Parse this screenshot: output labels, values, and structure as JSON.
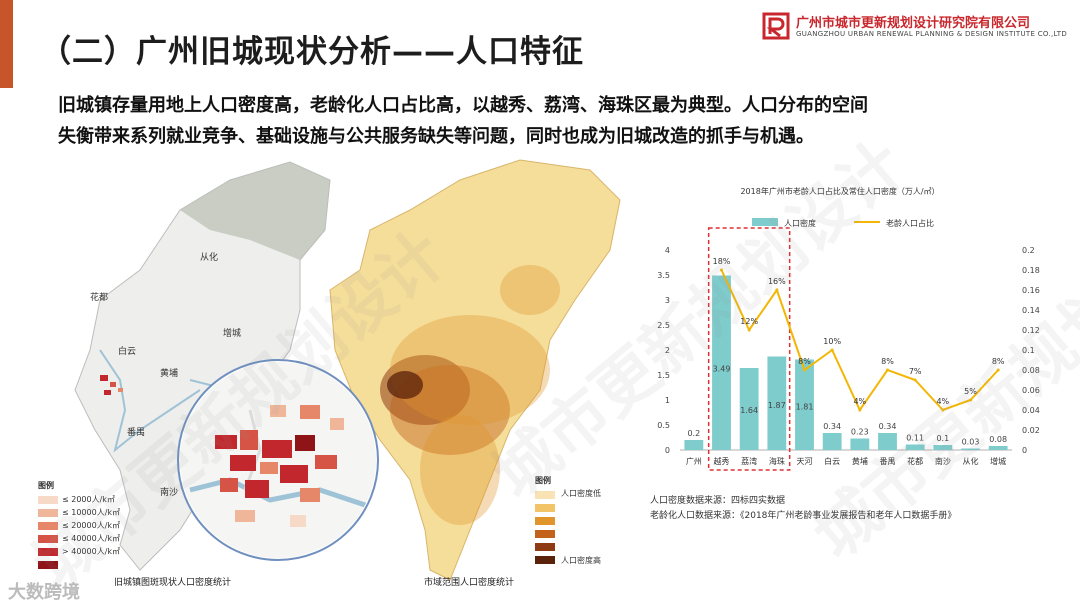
{
  "slide": {
    "title": "（二）广州旧城现状分析——人口特征",
    "lead_line1": "旧城镇存量用地上人口密度高，老龄化人口占比高，以越秀、荔湾、海珠区最为典型。人口分布的空间",
    "lead_line2": "失衡带来系列就业竞争、基础设施与公共服务缺失等问题，同时也成为旧城改造的抓手与机遇。"
  },
  "logo": {
    "name": "广州市城市更新规划设计研究院有限公司",
    "subtitle": "GUANGZHOU URBAN RENEWAL PLANNING & DESIGN INSTITUTE CO.,LTD",
    "color": "#c8282d"
  },
  "map_left": {
    "districts": [
      "从化",
      "花都",
      "增城",
      "白云",
      "黄埔",
      "番禺",
      "南沙"
    ],
    "legend_title": "图例",
    "legend": [
      {
        "label": "≤ 2000人/k㎡",
        "color": "#f6d9c6"
      },
      {
        "label": "≤ 10000人/k㎡",
        "color": "#efb69a"
      },
      {
        "label": "≤ 20000人/k㎡",
        "color": "#e6876a"
      },
      {
        "label": "≤ 40000人/k㎡",
        "color": "#d65446"
      },
      {
        "label": "> 40000人/k㎡",
        "color": "#c1272d"
      },
      {
        "label": "",
        "color": "#8e1418"
      }
    ],
    "caption": "旧城镇图斑现状人口密度统计"
  },
  "map_right": {
    "legend_title": "图例",
    "legend_low": "人口密度低",
    "legend_high": "人口密度高",
    "legend_colors": [
      "#f9e3b4",
      "#f3c466",
      "#e0962a",
      "#c2621b",
      "#8e3a12",
      "#5a2209"
    ],
    "caption": "市域范围人口密度统计"
  },
  "chart_data": {
    "type": "bar",
    "title": "2018年广州市老龄人口占比及常住人口密度（万人/㎡）",
    "categories": [
      "广州",
      "越秀",
      "荔湾",
      "海珠",
      "天河",
      "白云",
      "黄埔",
      "番禺",
      "花都",
      "南沙",
      "从化",
      "增城"
    ],
    "series": [
      {
        "name": "人口密度",
        "type": "bar",
        "axis": "left",
        "color": "#7fcccc",
        "values": [
          0.2,
          3.49,
          1.64,
          1.87,
          1.81,
          0.34,
          0.23,
          0.34,
          0.11,
          0.1,
          0.03,
          0.08
        ],
        "value_labels": [
          "0.2",
          "3.49",
          "1.64",
          "1.87",
          "1.81",
          "0.34",
          "0.23",
          "0.34",
          "0.11",
          "0.1",
          "0.03",
          "0.08"
        ]
      },
      {
        "name": "老龄人口占比",
        "type": "line",
        "axis": "right",
        "color": "#f2b705",
        "values": [
          null,
          0.18,
          0.12,
          0.16,
          0.08,
          0.1,
          0.04,
          0.08,
          0.07,
          0.04,
          0.05,
          0.08
        ],
        "value_labels": [
          "",
          "18%",
          "12%",
          "16%",
          "8%",
          "10%",
          "4%",
          "8%",
          "7%",
          "4%",
          "5%",
          "8%"
        ]
      }
    ],
    "ylim_left": [
      0,
      4
    ],
    "yticks_left": [
      "0",
      "0.5",
      "1",
      "1.5",
      "2",
      "2.5",
      "3",
      "3.5",
      "4"
    ],
    "ylim_right": [
      0,
      0.2
    ],
    "yticks_right": [
      "0",
      "0.02",
      "0.04",
      "0.06",
      "0.08",
      "0.1",
      "0.12",
      "0.14",
      "0.16",
      "0.18",
      "0.2"
    ],
    "legend_position": "top",
    "highlight": {
      "from": "越秀",
      "to": "海珠",
      "color": "#e03030",
      "style": "dashed"
    },
    "grid": false
  },
  "sources": {
    "density": "人口密度数据来源：四标四实数据",
    "aging": "老龄化人口数据来源：《2018年广州老龄事业发展报告和老年人口数据手册》"
  },
  "watermark": {
    "text": "城市更新规划设计",
    "brand": "大数跨境"
  }
}
